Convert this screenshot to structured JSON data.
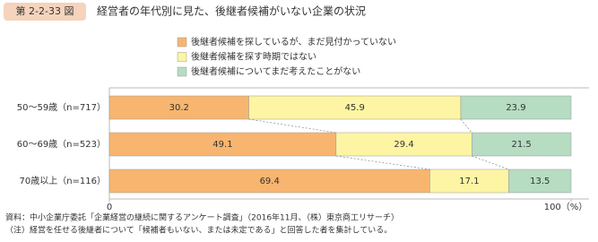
{
  "chart_data": {
    "type": "stacked-bar-horizontal",
    "figure_number": "第 2-2-33 図",
    "title": "経営者の年代別に見た、後継者候補がいない企業の状況",
    "categories": [
      "50～59歳（n=717）",
      "60～69歳（n=523）",
      "70歳以上（n=116）"
    ],
    "series": [
      {
        "name": "後継者候補を探しているが、まだ見付かっていない",
        "color": "#f7b56f",
        "values": [
          30.2,
          49.1,
          69.4
        ]
      },
      {
        "name": "後継者候補を探す時期ではない",
        "color": "#fdf5a3",
        "values": [
          45.9,
          29.4,
          17.1
        ]
      },
      {
        "name": "後継者候補についてまだ考えたことがない",
        "color": "#b6dcc1",
        "values": [
          23.9,
          21.5,
          13.5
        ]
      }
    ],
    "xlim": [
      0,
      100
    ],
    "xticks": [
      0,
      {
        "value": 100,
        "label": "100（%）"
      }
    ],
    "notes": [
      "資料：中小企業庁委託「企業経営の継続に関するアンケート調査」（2016年11月、（株）東京商工リサーチ）",
      "（注）経営を任せる後継者について「候補者もいない、または未定である」と回答した者を集計している。"
    ]
  }
}
